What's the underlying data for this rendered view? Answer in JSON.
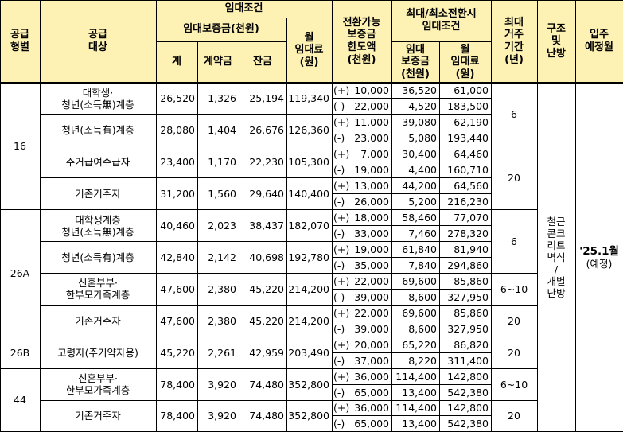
{
  "header": {
    "supply_type": "공급\n형별",
    "supply_target": "공급\n대상",
    "rent_terms": "임대조건",
    "deposit_group": "임대보증금(천원)",
    "total": "계",
    "contract": "계약금",
    "balance": "잔금",
    "monthly_rent": "월\n임대료\n(원)",
    "conversion_limit": "전환가능\n보증금\n한도액\n(천원)",
    "max_min_terms": "최대/최소전환시\n임대조건",
    "conv_deposit": "임대\n보증금\n(천원)",
    "conv_rent": "월\n임대료\n(원)",
    "max_period": "최대\n거주\n기간\n(년)",
    "structure_heating": "구조\n및\n난방",
    "move_in": "입주\n예정월"
  },
  "rows": [
    {
      "target": "대학생·\n청년(소득無)계층",
      "total": "26,520",
      "contract": "1,326",
      "balance": "25,194",
      "rent": "119,340",
      "plus": "10,000",
      "minus": "22,000",
      "max_dep": "36,520",
      "max_rent": "61,000",
      "min_dep": "4,520",
      "min_rent": "183,500"
    },
    {
      "target": "청년(소득有)계층",
      "total": "28,080",
      "contract": "1,404",
      "balance": "26,676",
      "rent": "126,360",
      "plus": "11,000",
      "minus": "23,000",
      "max_dep": "39,080",
      "max_rent": "62,190",
      "min_dep": "5,080",
      "min_rent": "193,440"
    },
    {
      "target": "주거급여수급자",
      "total": "23,400",
      "contract": "1,170",
      "balance": "22,230",
      "rent": "105,300",
      "plus": "7,000",
      "minus": "19,000",
      "max_dep": "30,400",
      "max_rent": "64,460",
      "min_dep": "4,400",
      "min_rent": "160,710"
    },
    {
      "target": "기존거주자",
      "total": "31,200",
      "contract": "1,560",
      "balance": "29,640",
      "rent": "140,400",
      "plus": "13,000",
      "minus": "26,000",
      "max_dep": "44,200",
      "max_rent": "64,560",
      "min_dep": "5,200",
      "min_rent": "216,230"
    },
    {
      "target": "대학생계층\n청년(소득無)계층",
      "total": "40,460",
      "contract": "2,023",
      "balance": "38,437",
      "rent": "182,070",
      "plus": "18,000",
      "minus": "33,000",
      "max_dep": "58,460",
      "max_rent": "77,070",
      "min_dep": "7,460",
      "min_rent": "278,320"
    },
    {
      "target": "청년(소득有)계층",
      "total": "42,840",
      "contract": "2,142",
      "balance": "40,698",
      "rent": "192,780",
      "plus": "19,000",
      "minus": "35,000",
      "max_dep": "61,840",
      "max_rent": "81,940",
      "min_dep": "7,840",
      "min_rent": "294,860"
    },
    {
      "target": "신혼부부·\n한부모가족계층",
      "total": "47,600",
      "contract": "2,380",
      "balance": "45,220",
      "rent": "214,200",
      "plus": "22,000",
      "minus": "39,000",
      "max_dep": "69,600",
      "max_rent": "85,860",
      "min_dep": "8,600",
      "min_rent": "327,950"
    },
    {
      "target": "기존거주자",
      "total": "47,600",
      "contract": "2,380",
      "balance": "45,220",
      "rent": "214,200",
      "plus": "22,000",
      "minus": "39,000",
      "max_dep": "69,600",
      "max_rent": "85,860",
      "min_dep": "8,600",
      "min_rent": "327,950"
    },
    {
      "target": "고령자(주거약자용)",
      "total": "45,220",
      "contract": "2,261",
      "balance": "42,959",
      "rent": "203,490",
      "plus": "20,000",
      "minus": "37,000",
      "max_dep": "65,220",
      "max_rent": "86,820",
      "min_dep": "8,220",
      "min_rent": "311,400"
    },
    {
      "target": "신혼부부·\n한부모가족계층",
      "total": "78,400",
      "contract": "3,920",
      "balance": "74,480",
      "rent": "352,800",
      "plus": "36,000",
      "minus": "65,000",
      "max_dep": "114,400",
      "max_rent": "142,800",
      "min_dep": "13,400",
      "min_rent": "542,380"
    },
    {
      "target": "기존거주자",
      "total": "78,400",
      "contract": "3,920",
      "balance": "74,480",
      "rent": "352,800",
      "plus": "36,000",
      "minus": "65,000",
      "max_dep": "114,400",
      "max_rent": "142,800",
      "min_dep": "13,400",
      "min_rent": "542,380"
    }
  ],
  "types": [
    "16",
    "26A",
    "26B",
    "44"
  ],
  "periods": [
    "6",
    "20",
    "6",
    "6~10",
    "20",
    "20",
    "6~10",
    "20"
  ],
  "plus_sign": "(+)",
  "minus_sign": "(-)",
  "structure": "철근\n콘크\n리트\n벽식\n/\n개별\n난방",
  "move_in_value": "'25.1월",
  "move_in_note": "(예정)"
}
